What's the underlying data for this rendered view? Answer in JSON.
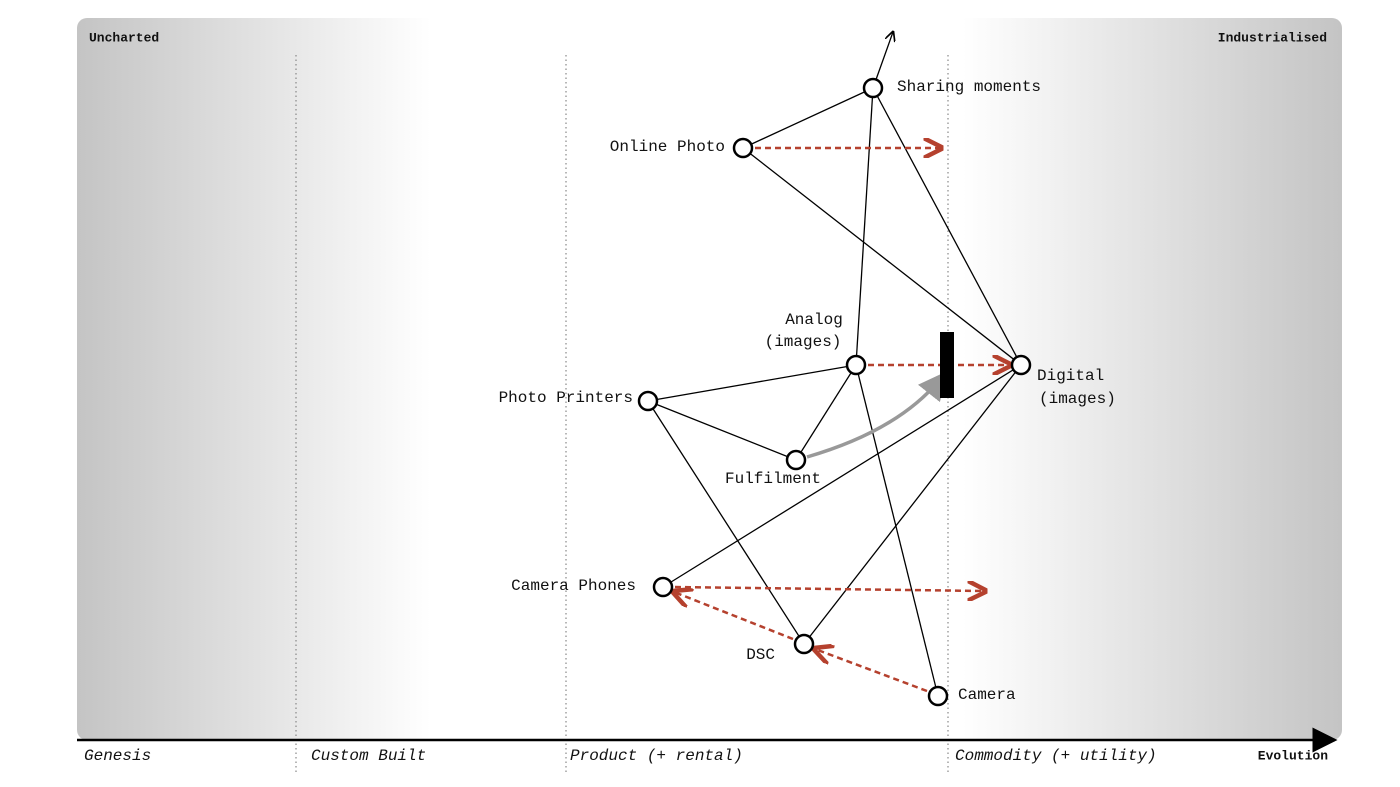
{
  "corners": {
    "left": "Uncharted",
    "right": "Industrialised"
  },
  "stages": [
    "Genesis",
    "Custom Built",
    "Product (+ rental)",
    "Commodity (+ utility)"
  ],
  "axis_label": "Evolution",
  "nodes": [
    {
      "label": [
        "Sharing moments"
      ]
    },
    {
      "label": [
        "Online Photo"
      ]
    },
    {
      "label": [
        "Analog",
        "(images)"
      ]
    },
    {
      "label": [
        "Digital",
        "(images)"
      ]
    },
    {
      "label": [
        "Photo Printers"
      ]
    },
    {
      "label": [
        "Fulfilment"
      ]
    },
    {
      "label": [
        "Camera Phones"
      ]
    },
    {
      "label": [
        "DSC"
      ]
    },
    {
      "label": [
        "Camera"
      ]
    }
  ]
}
